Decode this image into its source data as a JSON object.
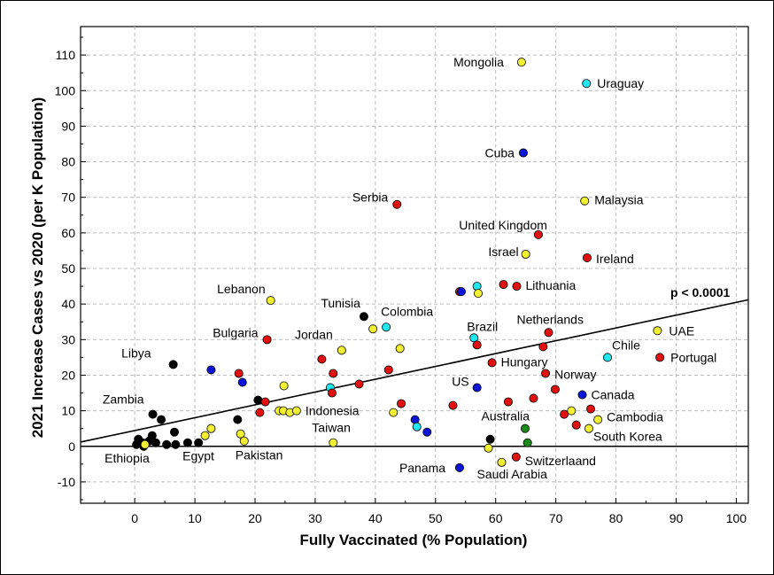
{
  "chart_data": {
    "type": "scatter",
    "xlabel": "Fully Vaccinated (% Population)",
    "ylabel": "2021 Increase Cases vs 2020 (per K Population)",
    "xlim": [
      -9,
      102
    ],
    "ylim": [
      -16,
      118
    ],
    "xticks": [
      0,
      10,
      20,
      30,
      40,
      50,
      60,
      70,
      80,
      90,
      100
    ],
    "yticks": [
      -10,
      0,
      10,
      20,
      30,
      40,
      50,
      60,
      70,
      80,
      90,
      100,
      110
    ],
    "grid": true,
    "annotation": "p < 0.0001",
    "colors": {
      "red": "#e01010",
      "blue": "#0a14d8",
      "cyan": "#1fe8f0",
      "yellow": "#f2f032",
      "black": "#000000",
      "green": "#1a8a1a"
    },
    "regression_line": {
      "x": [
        -9,
        102
      ],
      "y": [
        1.2,
        41.2
      ]
    },
    "zero_line": 0,
    "points": [
      {
        "x": 64.3,
        "y": 108,
        "color": "yellow",
        "label": "Mongolia"
      },
      {
        "x": 75.1,
        "y": 102,
        "color": "cyan",
        "label": "Uraguay"
      },
      {
        "x": 64.6,
        "y": 82.5,
        "color": "blue",
        "label": "Cuba"
      },
      {
        "x": 43.6,
        "y": 68,
        "color": "red",
        "label": "Serbia"
      },
      {
        "x": 74.8,
        "y": 69,
        "color": "yellow",
        "label": "Malaysia"
      },
      {
        "x": 67.1,
        "y": 59.5,
        "color": "red",
        "label": "United Kingdom"
      },
      {
        "x": 65,
        "y": 54,
        "color": "yellow",
        "label": "Israel"
      },
      {
        "x": 75.2,
        "y": 53,
        "color": "red",
        "label": "Ireland"
      },
      {
        "x": 63.5,
        "y": 45,
        "color": "red",
        "label": "Lithuania"
      },
      {
        "x": 61.3,
        "y": 45.5,
        "color": "red",
        "label": ""
      },
      {
        "x": 54,
        "y": 43.5,
        "color": "red",
        "label": ""
      },
      {
        "x": 54.3,
        "y": 43.5,
        "color": "blue",
        "label": ""
      },
      {
        "x": 56.9,
        "y": 45,
        "color": "cyan",
        "label": ""
      },
      {
        "x": 57.1,
        "y": 43,
        "color": "yellow",
        "label": ""
      },
      {
        "x": 22.6,
        "y": 41,
        "color": "yellow",
        "label": "Lebanon"
      },
      {
        "x": 38.1,
        "y": 36.5,
        "color": "black",
        "label": "Tunisia"
      },
      {
        "x": 41.8,
        "y": 33.5,
        "color": "cyan",
        "label": "Colombia"
      },
      {
        "x": 39.6,
        "y": 33,
        "color": "yellow",
        "label": ""
      },
      {
        "x": 56.4,
        "y": 30.5,
        "color": "cyan",
        "label": "Brazil"
      },
      {
        "x": 56.9,
        "y": 28.5,
        "color": "red",
        "label": ""
      },
      {
        "x": 68.8,
        "y": 32,
        "color": "red",
        "label": "Netherlands"
      },
      {
        "x": 67.9,
        "y": 28,
        "color": "red",
        "label": ""
      },
      {
        "x": 86.9,
        "y": 32.5,
        "color": "yellow",
        "label": "UAE"
      },
      {
        "x": 22,
        "y": 30,
        "color": "red",
        "label": "Bulgaria"
      },
      {
        "x": 34.4,
        "y": 27,
        "color": "yellow",
        "label": "Jordan"
      },
      {
        "x": 44.1,
        "y": 27.5,
        "color": "yellow",
        "label": ""
      },
      {
        "x": 31.1,
        "y": 24.5,
        "color": "red",
        "label": ""
      },
      {
        "x": 42.2,
        "y": 21.5,
        "color": "red",
        "label": ""
      },
      {
        "x": 33,
        "y": 20.5,
        "color": "red",
        "label": ""
      },
      {
        "x": 37.3,
        "y": 17.5,
        "color": "red",
        "label": ""
      },
      {
        "x": 32.5,
        "y": 16.5,
        "color": "cyan",
        "label": ""
      },
      {
        "x": 32.8,
        "y": 15,
        "color": "red",
        "label": ""
      },
      {
        "x": 59.4,
        "y": 23.5,
        "color": "red",
        "label": "Hungary"
      },
      {
        "x": 78.6,
        "y": 25,
        "color": "cyan",
        "label": "Chile"
      },
      {
        "x": 87.3,
        "y": 25,
        "color": "red",
        "label": "Portugal"
      },
      {
        "x": 6.4,
        "y": 23,
        "color": "black",
        "label": "Libya"
      },
      {
        "x": 12.7,
        "y": 21.5,
        "color": "blue",
        "label": ""
      },
      {
        "x": 17.3,
        "y": 20.5,
        "color": "red",
        "label": ""
      },
      {
        "x": 17.9,
        "y": 18,
        "color": "blue",
        "label": ""
      },
      {
        "x": 24.8,
        "y": 17,
        "color": "yellow",
        "label": ""
      },
      {
        "x": 68.3,
        "y": 20.5,
        "color": "red",
        "label": "Norway"
      },
      {
        "x": 69.9,
        "y": 16,
        "color": "red",
        "label": ""
      },
      {
        "x": 56.9,
        "y": 16.5,
        "color": "blue",
        "label": "US"
      },
      {
        "x": 74.4,
        "y": 14.5,
        "color": "blue",
        "label": "Canada"
      },
      {
        "x": 20.5,
        "y": 13,
        "color": "black",
        "label": ""
      },
      {
        "x": 21.7,
        "y": 12.5,
        "color": "red",
        "label": ""
      },
      {
        "x": 20.8,
        "y": 9.5,
        "color": "red",
        "label": ""
      },
      {
        "x": 24,
        "y": 10,
        "color": "yellow",
        "label": ""
      },
      {
        "x": 24.7,
        "y": 10,
        "color": "yellow",
        "label": ""
      },
      {
        "x": 25.8,
        "y": 9.5,
        "color": "yellow",
        "label": ""
      },
      {
        "x": 26.9,
        "y": 10,
        "color": "yellow",
        "label": "Indonesia"
      },
      {
        "x": 44.3,
        "y": 12,
        "color": "red",
        "label": ""
      },
      {
        "x": 43,
        "y": 9.5,
        "color": "yellow",
        "label": ""
      },
      {
        "x": 52.9,
        "y": 11.5,
        "color": "red",
        "label": ""
      },
      {
        "x": 62.1,
        "y": 12.5,
        "color": "red",
        "label": ""
      },
      {
        "x": 66.3,
        "y": 13.5,
        "color": "red",
        "label": ""
      },
      {
        "x": 71.4,
        "y": 9,
        "color": "red",
        "label": ""
      },
      {
        "x": 72.6,
        "y": 10,
        "color": "yellow",
        "label": ""
      },
      {
        "x": 75.8,
        "y": 10.5,
        "color": "red",
        "label": ""
      },
      {
        "x": 77,
        "y": 7.5,
        "color": "yellow",
        "label": "Cambodia"
      },
      {
        "x": 73.4,
        "y": 6,
        "color": "red",
        "label": ""
      },
      {
        "x": 75.5,
        "y": 5,
        "color": "yellow",
        "label": "South Korea"
      },
      {
        "x": 3,
        "y": 9,
        "color": "black",
        "label": "Zambia"
      },
      {
        "x": 4.4,
        "y": 7.5,
        "color": "black",
        "label": ""
      },
      {
        "x": 17.1,
        "y": 7.5,
        "color": "black",
        "label": ""
      },
      {
        "x": 46.6,
        "y": 7.5,
        "color": "blue",
        "label": ""
      },
      {
        "x": 46.9,
        "y": 5.5,
        "color": "cyan",
        "label": ""
      },
      {
        "x": 48.6,
        "y": 4,
        "color": "blue",
        "label": ""
      },
      {
        "x": 64.9,
        "y": 5,
        "color": "green",
        "label": "Australia"
      },
      {
        "x": 59.1,
        "y": 2,
        "color": "black",
        "label": ""
      },
      {
        "x": 65.3,
        "y": 1,
        "color": "green",
        "label": ""
      },
      {
        "x": 58.8,
        "y": -0.5,
        "color": "yellow",
        "label": ""
      },
      {
        "x": 12.7,
        "y": 5,
        "color": "yellow",
        "label": ""
      },
      {
        "x": 11.7,
        "y": 3,
        "color": "yellow",
        "label": ""
      },
      {
        "x": 17.6,
        "y": 3.5,
        "color": "yellow",
        "label": ""
      },
      {
        "x": 18.2,
        "y": 1.5,
        "color": "yellow",
        "label": "Pakistan"
      },
      {
        "x": 33,
        "y": 1,
        "color": "yellow",
        "label": "Taiwan"
      },
      {
        "x": 6.6,
        "y": 4,
        "color": "black",
        "label": ""
      },
      {
        "x": 2.9,
        "y": 3,
        "color": "black",
        "label": ""
      },
      {
        "x": 2.4,
        "y": 1.5,
        "color": "black",
        "label": ""
      },
      {
        "x": 3.5,
        "y": 1,
        "color": "black",
        "label": ""
      },
      {
        "x": 0.6,
        "y": 2,
        "color": "black",
        "label": ""
      },
      {
        "x": 0.3,
        "y": 0.5,
        "color": "black",
        "label": "Ethiopia"
      },
      {
        "x": 1.3,
        "y": 1,
        "color": "black",
        "label": ""
      },
      {
        "x": 1.5,
        "y": 0,
        "color": "black",
        "label": ""
      },
      {
        "x": 5.3,
        "y": 0.5,
        "color": "black",
        "label": ""
      },
      {
        "x": 6.8,
        "y": 0.5,
        "color": "black",
        "label": ""
      },
      {
        "x": 8.8,
        "y": 1,
        "color": "black",
        "label": ""
      },
      {
        "x": 10.6,
        "y": 1,
        "color": "black",
        "label": "Egypt"
      },
      {
        "x": 1.7,
        "y": 0.5,
        "color": "yellow",
        "label": ""
      },
      {
        "x": 63.4,
        "y": -3,
        "color": "red",
        "label": "Switzerlaand"
      },
      {
        "x": 61,
        "y": -4.5,
        "color": "yellow",
        "label": "Saudi Arabia"
      },
      {
        "x": 54,
        "y": -6,
        "color": "blue",
        "label": "Panama"
      }
    ]
  }
}
